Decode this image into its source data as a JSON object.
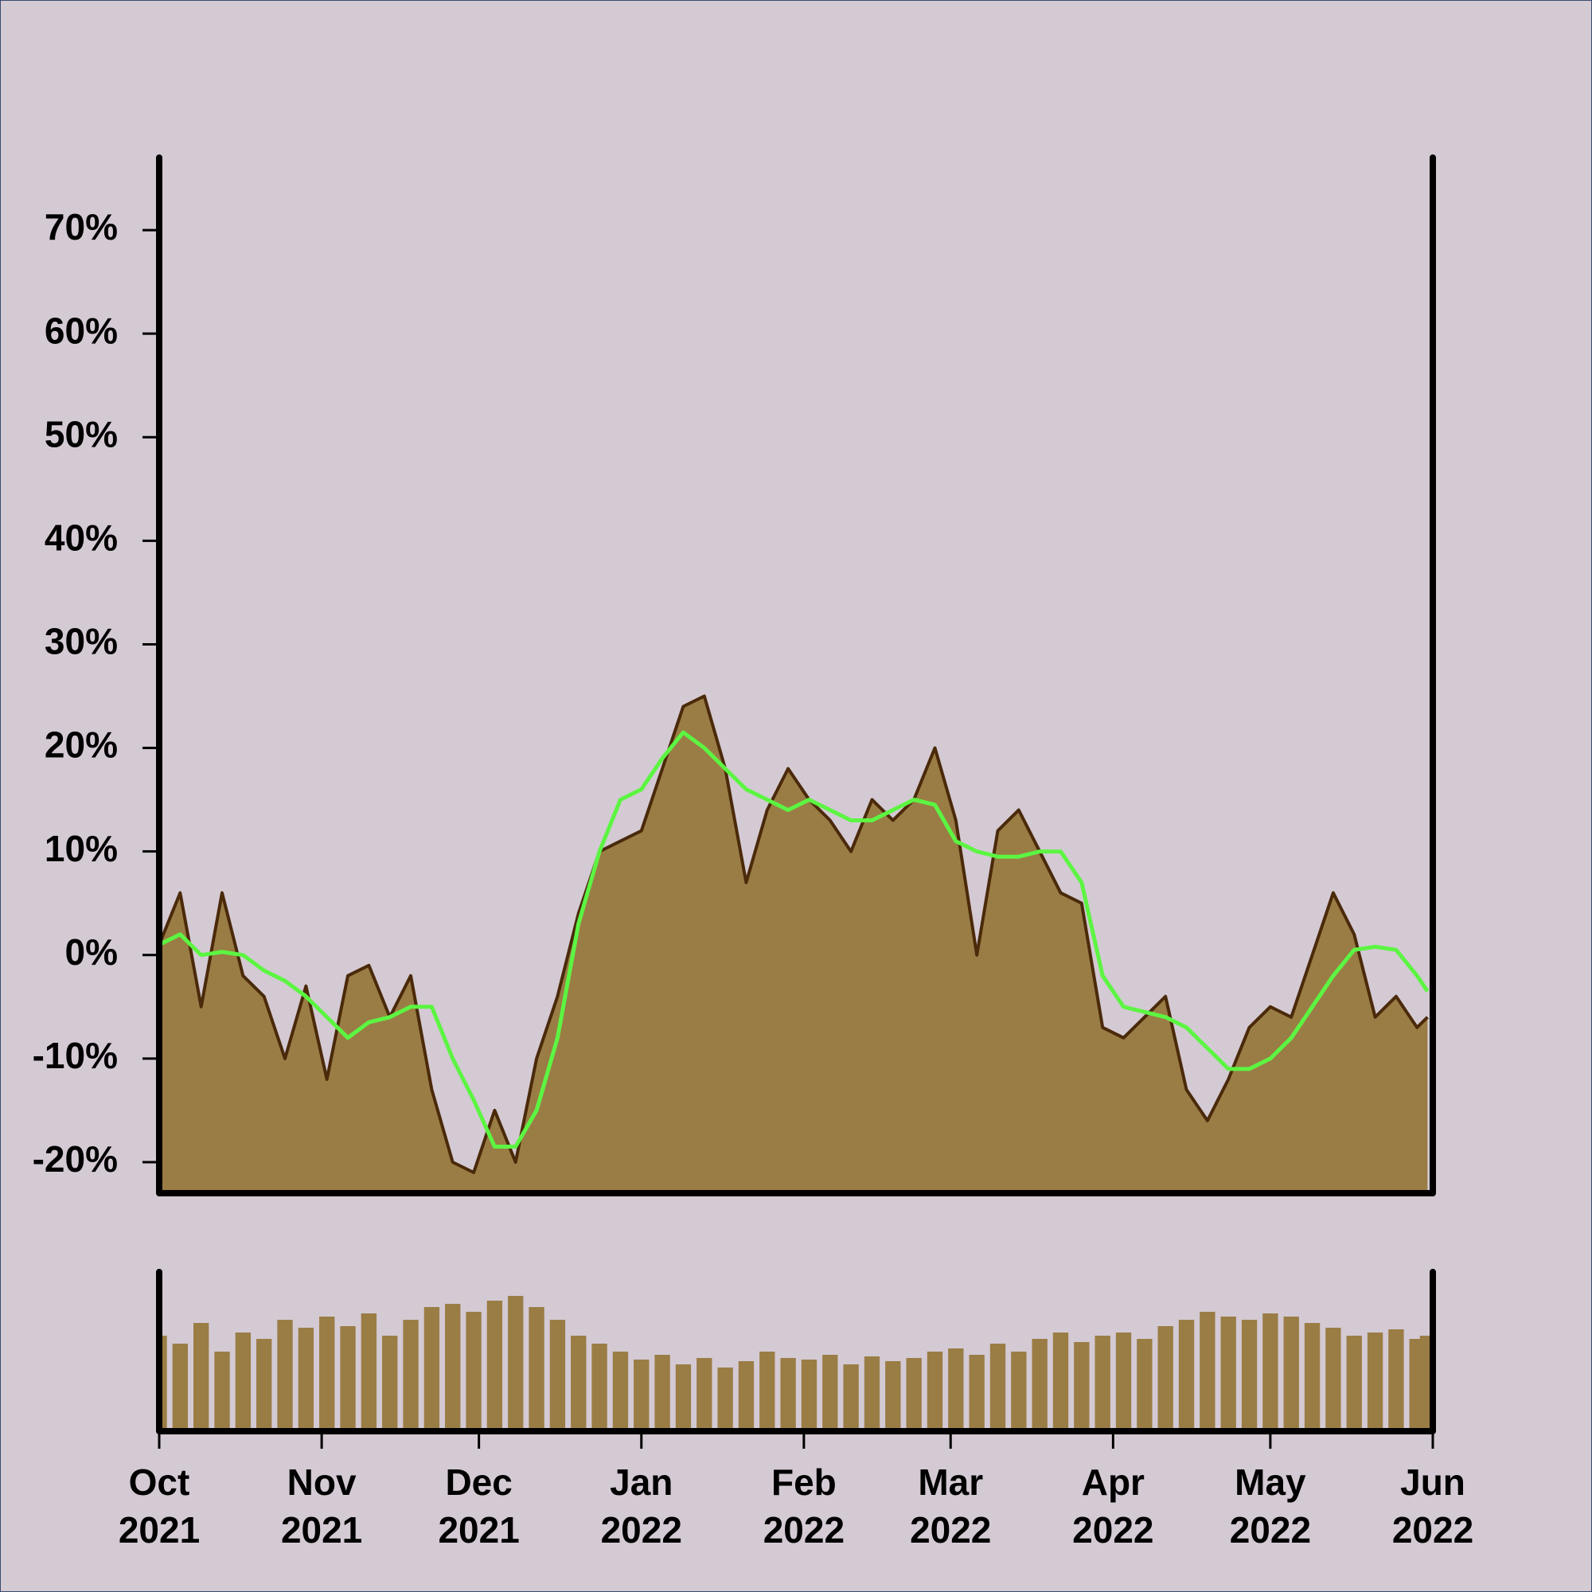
{
  "chart_data": {
    "type": "area",
    "x": [
      "2021-10-01",
      "2021-10-05",
      "2021-10-09",
      "2021-10-13",
      "2021-10-17",
      "2021-10-21",
      "2021-10-25",
      "2021-10-29",
      "2021-11-02",
      "2021-11-06",
      "2021-11-10",
      "2021-11-14",
      "2021-11-18",
      "2021-11-22",
      "2021-11-26",
      "2021-11-30",
      "2021-12-04",
      "2021-12-08",
      "2021-12-12",
      "2021-12-16",
      "2021-12-20",
      "2021-12-24",
      "2021-12-28",
      "2022-01-01",
      "2022-01-05",
      "2022-01-09",
      "2022-01-13",
      "2022-01-17",
      "2022-01-21",
      "2022-01-25",
      "2022-01-29",
      "2022-02-02",
      "2022-02-06",
      "2022-02-10",
      "2022-02-14",
      "2022-02-18",
      "2022-02-22",
      "2022-02-26",
      "2022-03-02",
      "2022-03-06",
      "2022-03-10",
      "2022-03-14",
      "2022-03-18",
      "2022-03-22",
      "2022-03-26",
      "2022-03-30",
      "2022-04-03",
      "2022-04-07",
      "2022-04-11",
      "2022-04-15",
      "2022-04-19",
      "2022-04-23",
      "2022-04-27",
      "2022-05-01",
      "2022-05-05",
      "2022-05-09",
      "2022-05-13",
      "2022-05-17",
      "2022-05-21",
      "2022-05-25",
      "2022-05-29",
      "2022-05-31"
    ],
    "values": [
      1,
      6,
      -5,
      6,
      -2,
      -4,
      -10,
      -3,
      -12,
      -2,
      -1,
      -6,
      -2,
      -13,
      -20,
      -21,
      -15,
      -20,
      -10,
      -4,
      4,
      10,
      11,
      12,
      18,
      24,
      25,
      18,
      7,
      14,
      18,
      15,
      13,
      10,
      15,
      13,
      15,
      20,
      13,
      0,
      12,
      14,
      10,
      6,
      5,
      -7,
      -8,
      -6,
      -4,
      -13,
      -16,
      -12,
      -7,
      -5,
      -6,
      0,
      6,
      2,
      -6,
      -4,
      -7,
      -6
    ],
    "line_color": "#4a2a0a",
    "fill_color": "#9a7d45",
    "moving_average": {
      "color": "#5cf542",
      "values": [
        1,
        2,
        0,
        0.3,
        0,
        -1.5,
        -2.5,
        -4,
        -6,
        -8,
        -6.5,
        -6,
        -5,
        -5,
        -10,
        -14,
        -18.5,
        -18.5,
        -15,
        -8,
        3,
        10,
        15,
        16,
        19,
        21.5,
        20,
        18,
        16,
        15,
        14,
        15,
        14,
        13,
        13,
        14,
        15,
        14.5,
        11,
        10,
        9.5,
        9.5,
        10,
        10,
        7,
        -2,
        -5,
        -5.5,
        -6,
        -7,
        -9,
        -11,
        -11,
        -10,
        -8,
        -5,
        -2,
        0.5,
        0.8,
        0.5,
        -2,
        -3.5
      ]
    },
    "volume": {
      "color": "#9a7d45",
      "ylim": [
        0,
        100
      ],
      "values": [
        60,
        55,
        68,
        50,
        62,
        58,
        70,
        65,
        72,
        66,
        74,
        60,
        70,
        78,
        80,
        75,
        82,
        85,
        78,
        70,
        60,
        55,
        50,
        45,
        48,
        42,
        46,
        40,
        44,
        50,
        46,
        45,
        48,
        42,
        47,
        44,
        46,
        50,
        52,
        48,
        55,
        50,
        58,
        62,
        56,
        60,
        62,
        58,
        66,
        70,
        75,
        72,
        70,
        74,
        72,
        68,
        65,
        60,
        62,
        64,
        58,
        60
      ]
    },
    "xlim": [
      "2021-10-01",
      "2022-06-01"
    ],
    "xticks": [
      {
        "value": "2021-10-01",
        "label": "Oct 2021"
      },
      {
        "value": "2021-11-01",
        "label": "Nov 2021"
      },
      {
        "value": "2021-12-01",
        "label": "Dec 2021"
      },
      {
        "value": "2022-01-01",
        "label": "Jan 2022"
      },
      {
        "value": "2022-02-01",
        "label": "Feb 2022"
      },
      {
        "value": "2022-03-01",
        "label": "Mar 2022"
      },
      {
        "value": "2022-04-01",
        "label": "Apr 2022"
      },
      {
        "value": "2022-05-01",
        "label": "May 2022"
      },
      {
        "value": "2022-06-01",
        "label": "Jun 2022"
      }
    ],
    "ylim": [
      -23,
      77
    ],
    "yticks": [
      {
        "value": -20,
        "label": "-20%"
      },
      {
        "value": -10,
        "label": "-10%"
      },
      {
        "value": 0,
        "label": "0%"
      },
      {
        "value": 10,
        "label": "10%"
      },
      {
        "value": 20,
        "label": "20%"
      },
      {
        "value": 30,
        "label": "30%"
      },
      {
        "value": 40,
        "label": "40%"
      },
      {
        "value": 50,
        "label": "50%"
      },
      {
        "value": 60,
        "label": "60%"
      },
      {
        "value": 70,
        "label": "70%"
      }
    ]
  }
}
